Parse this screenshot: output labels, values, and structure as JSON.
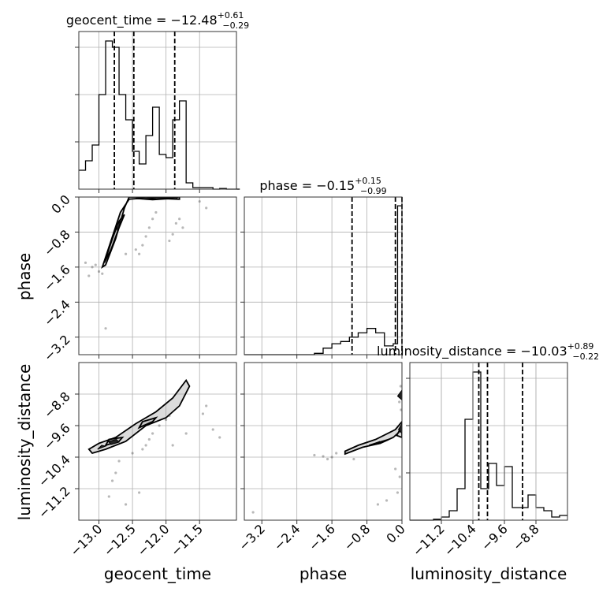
{
  "chart_data": {
    "type": "corner",
    "params": [
      {
        "name": "geocent_time",
        "title_prefix": "geocent_time = ",
        "median": "−12.48",
        "err_plus": "+0.61",
        "err_minus": "−0.29",
        "range": [
          -13.3,
          -10.95
        ],
        "ticks": [
          -13.0,
          -12.5,
          -12.0,
          -11.5
        ],
        "tick_labels": [
          "−13.0",
          "−12.5",
          "−12.0",
          "−11.5"
        ],
        "quantiles": [
          -12.77,
          -12.48,
          -11.87
        ],
        "hist": {
          "edges": [
            -13.3,
            -13.2,
            -13.1,
            -13.0,
            -12.9,
            -12.8,
            -12.7,
            -12.6,
            -12.5,
            -12.4,
            -12.3,
            -12.2,
            -12.1,
            -12.0,
            -11.9,
            -11.8,
            -11.7,
            -11.6,
            -11.5,
            -11.4,
            -11.3,
            -11.2,
            -11.1,
            -11.0,
            -10.9
          ],
          "counts": [
            6,
            9,
            14,
            30,
            47,
            45,
            30,
            22,
            12,
            8,
            17,
            26,
            11,
            10,
            22,
            28,
            2,
            0.5,
            0.5,
            0.5,
            0,
            0.2,
            0,
            0
          ],
          "ymax": 50,
          "yticks": [
            15,
            30,
            45
          ]
        }
      },
      {
        "name": "phase",
        "title_prefix": "phase = ",
        "median": "−0.15",
        "err_plus": "+0.15",
        "err_minus": "−0.99",
        "range": [
          -3.6,
          0.0
        ],
        "ticks": [
          -3.2,
          -2.4,
          -1.6,
          -0.8,
          0.0
        ],
        "tick_labels": [
          "−3.2",
          "−2.4",
          "−1.6",
          "−0.8",
          "0.0"
        ],
        "quantiles": [
          -1.14,
          -0.15,
          0.0
        ],
        "hist": {
          "edges": [
            -3.6,
            -3.4,
            -3.2,
            -3.0,
            -2.8,
            -2.6,
            -2.4,
            -2.2,
            -2.0,
            -1.8,
            -1.6,
            -1.4,
            -1.2,
            -1.0,
            -0.8,
            -0.6,
            -0.4,
            -0.2,
            -0.1,
            0.0
          ],
          "counts": [
            0,
            0,
            0,
            0,
            0,
            0,
            0,
            0,
            0.3,
            1.5,
            2.5,
            3,
            4,
            5,
            6,
            5,
            2,
            2.5,
            34
          ],
          "ymax": 36,
          "yticks": [
            4,
            12,
            20,
            28
          ]
        }
      },
      {
        "name": "luminosity_distance",
        "title_prefix": "luminosity_distance = ",
        "median": "−10.03",
        "err_plus": "+0.89",
        "err_minus": "−0.22",
        "range": [
          -12.0,
          -8.0
        ],
        "ticks": [
          -11.2,
          -10.4,
          -9.6,
          -8.8
        ],
        "tick_labels": [
          "−11.2",
          "−10.4",
          "−9.6",
          "−8.8"
        ],
        "quantiles": [
          -10.25,
          -10.03,
          -9.14
        ],
        "hist": {
          "edges": [
            -12.0,
            -11.8,
            -11.6,
            -11.4,
            -11.2,
            -11.0,
            -10.8,
            -10.6,
            -10.4,
            -10.2,
            -10.0,
            -9.8,
            -9.6,
            -9.4,
            -9.2,
            -9.0,
            -8.8,
            -8.6,
            -8.4,
            -8.2,
            -8.0
          ],
          "counts": [
            0,
            0,
            0,
            0.3,
            1,
            3,
            10,
            32,
            47,
            10,
            18,
            11,
            17,
            4,
            4,
            8,
            4,
            3,
            1,
            1.5
          ],
          "ymax": 50,
          "yticks": [
            15,
            30,
            45
          ]
        }
      }
    ],
    "pairs": [
      {
        "x": "geocent_time",
        "y": "phase",
        "contours": [
          [
            [
              -12.95,
              -1.6
            ],
            [
              -12.82,
              -1.0
            ],
            [
              -12.68,
              -0.35
            ],
            [
              -12.55,
              -0.05
            ],
            [
              -12.3,
              -0.02
            ],
            [
              -11.8,
              -0.05
            ],
            [
              -11.8,
              0.0
            ],
            [
              -12.55,
              0.0
            ],
            [
              -12.62,
              -0.25
            ],
            [
              -12.75,
              -0.95
            ],
            [
              -12.9,
              -1.55
            ]
          ],
          [
            [
              -12.92,
              -1.5
            ],
            [
              -12.8,
              -0.95
            ],
            [
              -12.7,
              -0.55
            ],
            [
              -12.62,
              -0.4
            ],
            [
              -12.7,
              -0.7
            ],
            [
              -12.82,
              -1.2
            ]
          ],
          [
            [
              -12.45,
              -0.03
            ],
            [
              -12.2,
              0.0
            ],
            [
              -11.9,
              -0.03
            ],
            [
              -12.2,
              -0.06
            ]
          ]
        ],
        "dense_regions": [
          [
            [
              -12.72,
              -0.8
            ],
            [
              -12.68,
              -0.55
            ],
            [
              -12.74,
              -0.65
            ]
          ],
          [
            [
              -12.42,
              -0.04
            ],
            [
              -12.3,
              0.0
            ],
            [
              -12.15,
              -0.04
            ]
          ],
          [
            [
              -11.95,
              -0.03
            ],
            [
              -11.82,
              0.0
            ],
            [
              -11.85,
              -0.05
            ]
          ]
        ],
        "scatter": [
          [
            -13.2,
            -1.5
          ],
          [
            -13.1,
            -1.6
          ],
          [
            -13.0,
            -1.7
          ],
          [
            -13.05,
            -1.55
          ],
          [
            -12.95,
            -1.75
          ],
          [
            -12.4,
            -1.3
          ],
          [
            -12.35,
            -1.1
          ],
          [
            -12.3,
            -0.9
          ],
          [
            -12.25,
            -0.7
          ],
          [
            -12.2,
            -0.5
          ],
          [
            -12.15,
            -0.35
          ],
          [
            -11.95,
            -1.0
          ],
          [
            -11.9,
            -0.85
          ],
          [
            -11.85,
            -0.6
          ],
          [
            -11.8,
            -0.5
          ],
          [
            -11.75,
            -0.7
          ],
          [
            -12.9,
            -3.0
          ],
          [
            -11.5,
            -0.1
          ],
          [
            -11.4,
            -0.25
          ],
          [
            -13.15,
            -1.8
          ],
          [
            -12.6,
            -1.3
          ],
          [
            -12.45,
            -1.2
          ]
        ]
      },
      {
        "x": "geocent_time",
        "y": "luminosity_distance",
        "contours": [
          [
            [
              -13.1,
              -10.3
            ],
            [
              -12.9,
              -10.2
            ],
            [
              -12.6,
              -10.0
            ],
            [
              -12.3,
              -9.6
            ],
            [
              -12.0,
              -9.4
            ],
            [
              -11.8,
              -9.1
            ],
            [
              -11.65,
              -8.6
            ],
            [
              -11.7,
              -8.45
            ],
            [
              -11.9,
              -8.9
            ],
            [
              -12.15,
              -9.25
            ],
            [
              -12.45,
              -9.55
            ],
            [
              -12.75,
              -9.9
            ],
            [
              -13.0,
              -10.05
            ],
            [
              -13.15,
              -10.2
            ]
          ],
          [
            [
              -12.9,
              -10.1
            ],
            [
              -12.7,
              -10.0
            ],
            [
              -12.65,
              -9.9
            ],
            [
              -12.85,
              -9.95
            ]
          ],
          [
            [
              -12.4,
              -9.65
            ],
            [
              -12.2,
              -9.5
            ],
            [
              -12.15,
              -9.4
            ],
            [
              -12.35,
              -9.5
            ]
          ]
        ],
        "dense_regions": [
          [
            [
              -12.82,
              -10.08
            ],
            [
              -12.7,
              -10.02
            ],
            [
              -12.74,
              -9.95
            ],
            [
              -12.86,
              -10.0
            ]
          ],
          [
            [
              -13.02,
              -10.2
            ],
            [
              -12.9,
              -10.12
            ],
            [
              -12.96,
              -10.1
            ]
          ]
        ],
        "scatter": [
          [
            -12.35,
            -10.2
          ],
          [
            -12.3,
            -10.1
          ],
          [
            -12.25,
            -9.95
          ],
          [
            -12.2,
            -9.8
          ],
          [
            -12.1,
            -9.6
          ],
          [
            -12.0,
            -9.45
          ],
          [
            -11.95,
            -9.35
          ],
          [
            -12.5,
            -10.3
          ],
          [
            -12.7,
            -10.5
          ],
          [
            -12.75,
            -10.8
          ],
          [
            -12.8,
            -11.0
          ],
          [
            -12.85,
            -11.4
          ],
          [
            -11.4,
            -9.1
          ],
          [
            -11.45,
            -9.3
          ],
          [
            -11.3,
            -9.7
          ],
          [
            -11.2,
            -9.9
          ],
          [
            -12.6,
            -11.6
          ],
          [
            -12.4,
            -11.3
          ],
          [
            -11.9,
            -10.1
          ],
          [
            -11.7,
            -9.8
          ]
        ]
      },
      {
        "x": "phase",
        "y": "luminosity_distance",
        "contours": [
          [
            [
              -1.3,
              -10.32
            ],
            [
              -0.9,
              -10.15
            ],
            [
              -0.5,
              -10.05
            ],
            [
              -0.2,
              -9.9
            ],
            [
              0.0,
              -9.7
            ],
            [
              0.0,
              -9.5
            ],
            [
              -0.15,
              -9.7
            ],
            [
              -0.6,
              -9.95
            ],
            [
              -1.0,
              -10.1
            ],
            [
              -1.3,
              -10.25
            ]
          ],
          [
            [
              -0.75,
              -10.1
            ],
            [
              -0.45,
              -10.0
            ],
            [
              -0.3,
              -9.95
            ],
            [
              -0.5,
              -10.05
            ]
          ],
          [
            [
              -0.12,
              -9.85
            ],
            [
              0.0,
              -9.6
            ],
            [
              0.0,
              -9.9
            ]
          ]
        ],
        "dense_regions": [
          [
            [
              -0.7,
              -10.08
            ],
            [
              -0.5,
              -10.0
            ],
            [
              -0.55,
              -10.05
            ]
          ],
          [
            [
              -0.08,
              -9.7
            ],
            [
              0.0,
              -9.55
            ],
            [
              0.0,
              -9.8
            ]
          ],
          [
            [
              -0.1,
              -8.85
            ],
            [
              0.0,
              -8.7
            ],
            [
              0.0,
              -8.95
            ]
          ]
        ],
        "scatter": [
          [
            -2.0,
            -10.35
          ],
          [
            -1.8,
            -10.38
          ],
          [
            -1.6,
            -10.4
          ],
          [
            -1.5,
            -10.3
          ],
          [
            -1.7,
            -10.45
          ],
          [
            -3.4,
            -11.8
          ],
          [
            -0.05,
            -10.9
          ],
          [
            -0.1,
            -11.3
          ],
          [
            -0.15,
            -10.7
          ],
          [
            -0.03,
            -8.6
          ],
          [
            -0.06,
            -9.0
          ],
          [
            -0.02,
            -9.2
          ],
          [
            -0.35,
            -11.5
          ],
          [
            -0.55,
            -11.6
          ],
          [
            -1.1,
            -10.45
          ]
        ]
      }
    ]
  }
}
